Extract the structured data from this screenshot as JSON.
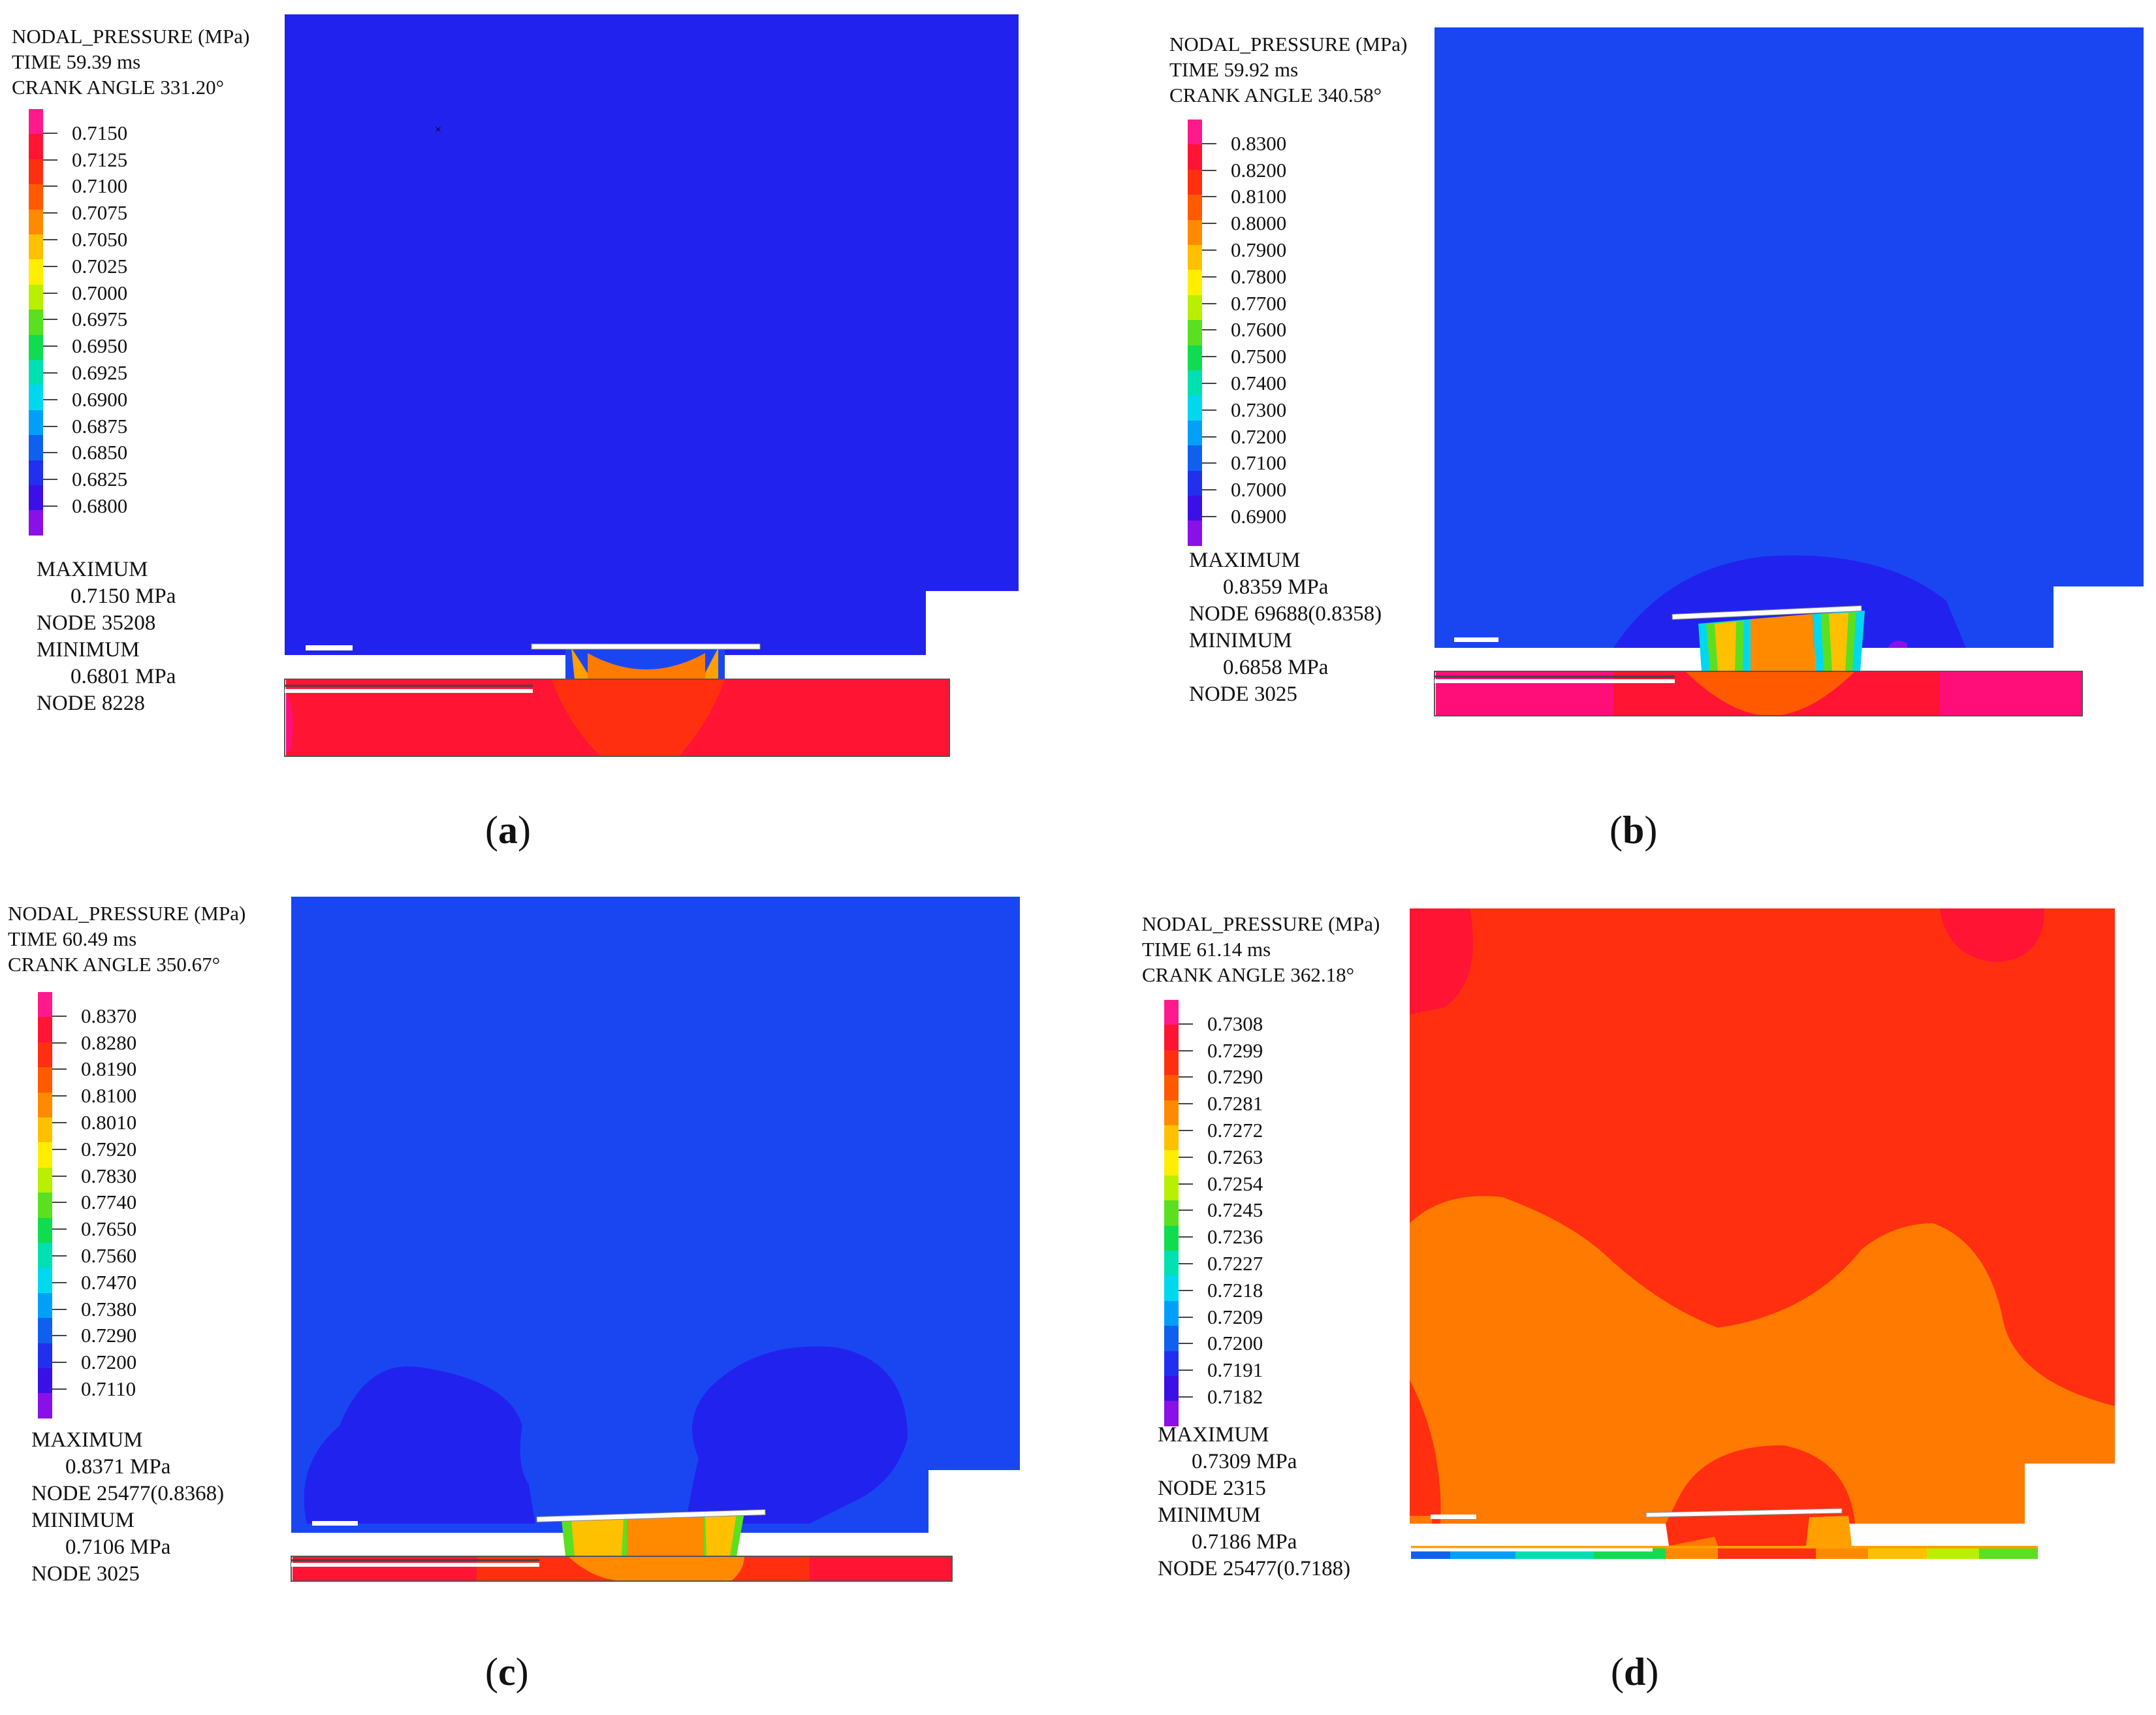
{
  "colors": {
    "deep_blue": "#2222ee",
    "blue": "#1a46f2",
    "violet": "#3a10e6",
    "red": "#ff1433",
    "red_orange": "#ff2f10",
    "orange": "#ff7a00",
    "amber": "#ffa000",
    "yellow": "#ffdd00",
    "green": "#44e020",
    "cyan": "#00e0e0",
    "magenta": "#ff0e7a",
    "white": "#ffffff"
  },
  "panels": [
    {
      "id": "a",
      "caption": "a",
      "variable": "NODAL_PRESSURE (MPa)",
      "time": "TIME 59.39 ms",
      "crank_angle": "CRANK ANGLE 331.20°",
      "legend_values": [
        "0.7150",
        "0.7125",
        "0.7100",
        "0.7075",
        "0.7050",
        "0.7025",
        "0.7000",
        "0.6975",
        "0.6950",
        "0.6925",
        "0.6900",
        "0.6875",
        "0.6850",
        "0.6825",
        "0.6800"
      ],
      "maximum_label": "MAXIMUM",
      "maximum_value": "0.7150 MPa",
      "maximum_node": "NODE 35208",
      "minimum_label": "MINIMUM",
      "minimum_value": "0.6801 MPa",
      "minimum_node": "NODE 8228"
    },
    {
      "id": "b",
      "caption": "b",
      "variable": "NODAL_PRESSURE (MPa)",
      "time": "TIME 59.92 ms",
      "crank_angle": "CRANK ANGLE 340.58°",
      "legend_values": [
        "0.8300",
        "0.8200",
        "0.8100",
        "0.8000",
        "0.7900",
        "0.7800",
        "0.7700",
        "0.7600",
        "0.7500",
        "0.7400",
        "0.7300",
        "0.7200",
        "0.7100",
        "0.7000",
        "0.6900"
      ],
      "maximum_label": "MAXIMUM",
      "maximum_value": "0.8359 MPa",
      "maximum_node": "NODE 69688(0.8358)",
      "minimum_label": "MINIMUM",
      "minimum_value": "0.6858 MPa",
      "minimum_node": "NODE 3025"
    },
    {
      "id": "c",
      "caption": "c",
      "variable": "NODAL_PRESSURE (MPa)",
      "time": "TIME 60.49 ms",
      "crank_angle": "CRANK ANGLE 350.67°",
      "legend_values": [
        "0.8370",
        "0.8280",
        "0.8190",
        "0.8100",
        "0.8010",
        "0.7920",
        "0.7830",
        "0.7740",
        "0.7650",
        "0.7560",
        "0.7470",
        "0.7380",
        "0.7290",
        "0.7200",
        "0.7110"
      ],
      "maximum_label": "MAXIMUM",
      "maximum_value": "0.8371 MPa",
      "maximum_node": "NODE 25477(0.8368)",
      "minimum_label": "MINIMUM",
      "minimum_value": "0.7106 MPa",
      "minimum_node": "NODE 3025"
    },
    {
      "id": "d",
      "caption": "d",
      "variable": "NODAL_PRESSURE (MPa)",
      "time": "TIME 61.14 ms",
      "crank_angle": "CRANK ANGLE 362.18°",
      "legend_values": [
        "0.7308",
        "0.7299",
        "0.7290",
        "0.7281",
        "0.7272",
        "0.7263",
        "0.7254",
        "0.7245",
        "0.7236",
        "0.7227",
        "0.7218",
        "0.7209",
        "0.7200",
        "0.7191",
        "0.7182"
      ],
      "maximum_label": "MAXIMUM",
      "maximum_value": "0.7309 MPa",
      "maximum_node": "NODE 2315",
      "minimum_label": "MINIMUM",
      "minimum_value": "0.7186 MPa",
      "minimum_node": "NODE 25477(0.7188)"
    }
  ],
  "legend_palette": [
    "#ff1a8c",
    "#ff1433",
    "#ff2f10",
    "#ff5a00",
    "#ff8a00",
    "#ffc000",
    "#ffee00",
    "#b8f000",
    "#5ae020",
    "#10dc50",
    "#00e0b0",
    "#00d8f0",
    "#00a0f8",
    "#1060f0",
    "#2030ee",
    "#3a10e6",
    "#8a10e8"
  ]
}
